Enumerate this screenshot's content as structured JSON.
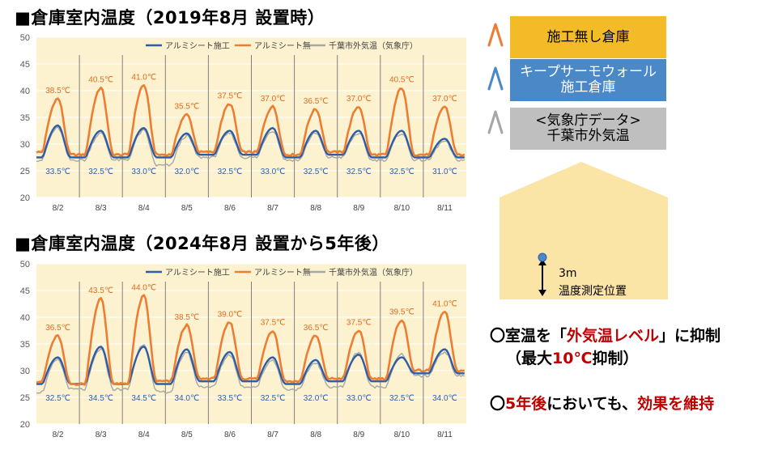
{
  "charts": [
    {
      "title": "■倉庫室内温度（2019年8月 設置時）",
      "legend": [
        "アルミシート施工",
        "アルミシート無",
        "千葉市外気温（気象庁）"
      ],
      "high_labels": [
        "38.5℃",
        "40.5℃",
        "41.0℃",
        "35.5℃",
        "37.5℃",
        "37.0℃",
        "36.5℃",
        "37.0℃",
        "40.5℃",
        "37.0℃"
      ],
      "low_labels": [
        "33.5℃",
        "32.5℃",
        "33.0℃",
        "32.0℃",
        "32.5℃",
        "33.0℃",
        "32.5℃",
        "32.5℃",
        "32.5℃",
        "31.0℃"
      ]
    },
    {
      "title": "■倉庫室内温度（2024年8月 設置から5年後）",
      "legend": [
        "アルミシート施工",
        "アルミシート無",
        "千葉市外気温（気象庁）"
      ],
      "high_labels": [
        "36.5℃",
        "43.5℃",
        "44.0℃",
        "38.5℃",
        "39.0℃",
        "37.5℃",
        "36.5℃",
        "37.5℃",
        "39.5℃",
        "41.0℃"
      ],
      "low_labels": [
        "32.5℃",
        "34.5℃",
        "34.5℃",
        "34.0℃",
        "33.5℃",
        "32.5℃",
        "32.0℃",
        "33.0℃",
        "32.5℃",
        "34.0℃"
      ]
    }
  ],
  "chart_data": [
    {
      "type": "line",
      "title": "■倉庫室内温度（2019年8月 設置時）",
      "categories": [
        "8/2",
        "8/3",
        "8/4",
        "8/5",
        "8/6",
        "8/7",
        "8/8",
        "8/9",
        "8/10",
        "8/11"
      ],
      "y_ticks": [
        20,
        25,
        30,
        35,
        40,
        45,
        50
      ],
      "ylim": [
        20,
        50
      ],
      "series": [
        {
          "name": "アルミシート施工",
          "color": "#2e5da8",
          "daily_max": [
            33.5,
            32.5,
            33.0,
            32.0,
            32.5,
            33.0,
            32.5,
            32.5,
            32.5,
            31.0
          ],
          "daily_min": [
            27.5,
            27.5,
            27.5,
            27.5,
            28.0,
            28.0,
            27.5,
            28.0,
            27.5,
            27.5
          ]
        },
        {
          "name": "アルミシート無",
          "color": "#ed7d31",
          "daily_max": [
            38.5,
            40.5,
            41.0,
            35.5,
            37.5,
            37.0,
            36.5,
            37.0,
            40.5,
            37.0
          ],
          "daily_min": [
            28.5,
            28.0,
            28.0,
            28.0,
            28.5,
            28.5,
            28.0,
            28.5,
            28.0,
            28.0
          ]
        },
        {
          "name": "千葉市外気温（気象庁）",
          "color": "#a6a6a6",
          "daily_max": [
            33.0,
            32.0,
            32.5,
            31.5,
            32.0,
            32.5,
            32.0,
            32.0,
            32.0,
            30.5
          ],
          "daily_min": [
            27.0,
            27.0,
            27.0,
            26.0,
            27.5,
            27.5,
            27.0,
            27.5,
            27.0,
            27.0
          ]
        }
      ]
    },
    {
      "type": "line",
      "title": "■倉庫室内温度（2024年8月 設置から5年後）",
      "categories": [
        "8/2",
        "8/3",
        "8/4",
        "8/5",
        "8/6",
        "8/7",
        "8/8",
        "8/9",
        "8/10",
        "8/11"
      ],
      "y_ticks": [
        20,
        25,
        30,
        35,
        40,
        45,
        50
      ],
      "ylim": [
        20,
        50
      ],
      "series": [
        {
          "name": "アルミシート施工",
          "color": "#2e5da8",
          "daily_max": [
            32.5,
            34.5,
            34.5,
            34.0,
            33.5,
            32.5,
            32.0,
            33.0,
            32.5,
            34.0
          ],
          "daily_min": [
            27.5,
            27.5,
            27.5,
            27.5,
            28.0,
            28.0,
            27.5,
            28.0,
            28.0,
            29.5
          ]
        },
        {
          "name": "アルミシート無",
          "color": "#ed7d31",
          "daily_max": [
            36.5,
            43.5,
            44.0,
            38.5,
            39.0,
            37.5,
            36.5,
            37.5,
            39.5,
            41.0
          ],
          "daily_min": [
            28.0,
            27.5,
            27.5,
            28.0,
            28.5,
            28.5,
            28.0,
            28.5,
            28.5,
            30.0
          ]
        },
        {
          "name": "千葉市外気温（気象庁）",
          "color": "#a6a6a6",
          "daily_max": [
            32.0,
            34.0,
            35.0,
            33.5,
            33.0,
            32.0,
            31.5,
            33.5,
            33.0,
            33.5
          ],
          "daily_min": [
            26.0,
            26.5,
            26.5,
            26.0,
            27.0,
            27.0,
            26.5,
            27.0,
            27.0,
            29.0
          ]
        }
      ]
    }
  ],
  "legend_panel": [
    {
      "label": "施工無し倉庫",
      "bg": "#f4bb28",
      "text_color": "#000000",
      "icon_color": "#ed7d31"
    },
    {
      "label": "キープサーモウォール\n施工倉庫",
      "bg": "#4a88c8",
      "text_color": "#ffffff",
      "icon_color": "#4a88c8"
    },
    {
      "label": "<気象庁データ>\n千葉市外気温",
      "bg": "#bfbfbf",
      "text_color": "#000000",
      "icon_color": "#a6a6a6"
    }
  ],
  "house": {
    "height_label": "3m",
    "position_label": "温度測定位置",
    "fill": "#fbe5a6"
  },
  "bullets": {
    "b1_pre": "〇室温を「",
    "b1_red": "外気温レベル",
    "b1_post": "」に抑制",
    "b2_pre": "（最大",
    "b2_red": "10℃",
    "b2_post": "抑制）",
    "b3_pre": "〇",
    "b3_red1": "5年後",
    "b3_mid": "においても、",
    "b3_red2": "効果を維持"
  }
}
